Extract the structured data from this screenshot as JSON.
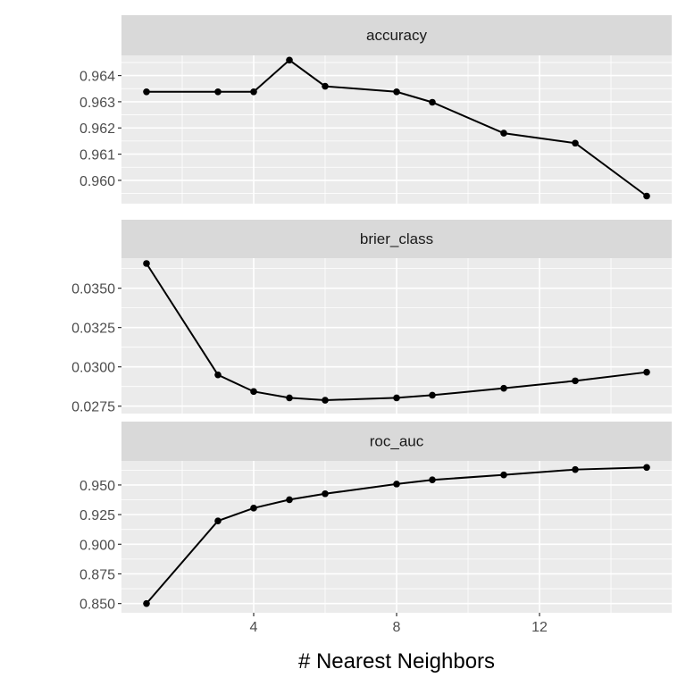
{
  "chart_data": {
    "type": "line",
    "layout": "facet_wrap, 3 rows, free y scales, shared x axis",
    "xlabel": "# Nearest Neighbors",
    "ylabel": "",
    "x": [
      1,
      3,
      4,
      5,
      6,
      8,
      9,
      11,
      13,
      15
    ],
    "xlim": [
      0.3,
      15.7
    ],
    "x_ticks": [
      4,
      8,
      12
    ],
    "x_tick_labels": [
      "4",
      "8",
      "12"
    ],
    "grid": true,
    "colors": {
      "panel_bg": "#ebebeb",
      "strip_bg": "#d9d9d9",
      "grid": "#ffffff",
      "line": "#000000"
    },
    "panels": [
      {
        "strip": "accuracy",
        "ylim": [
          0.95911,
          0.96477
        ],
        "y_ticks": [
          0.96,
          0.961,
          0.962,
          0.963,
          0.964
        ],
        "y_tick_labels": [
          "0.960",
          "0.961",
          "0.962",
          "0.963",
          "0.964"
        ],
        "values": [
          0.96338,
          0.96338,
          0.96338,
          0.96459,
          0.96359,
          0.96338,
          0.96298,
          0.9618,
          0.96142,
          0.9594
        ]
      },
      {
        "strip": "brier_class",
        "ylim": [
          0.02703,
          0.03691
        ],
        "y_ticks": [
          0.0275,
          0.03,
          0.0325,
          0.035
        ],
        "y_tick_labels": [
          "0.0275",
          "0.0300",
          "0.0325",
          "0.0350"
        ],
        "values": [
          0.03657,
          0.02949,
          0.02843,
          0.02803,
          0.02788,
          0.02803,
          0.0282,
          0.02864,
          0.02911,
          0.02966
        ]
      },
      {
        "strip": "roc_auc",
        "ylim": [
          0.8422,
          0.9703
        ],
        "y_ticks": [
          0.85,
          0.875,
          0.9,
          0.925,
          0.95
        ],
        "y_tick_labels": [
          "0.850",
          "0.875",
          "0.900",
          "0.925",
          "0.950"
        ],
        "values": [
          0.85,
          0.9197,
          0.9305,
          0.9376,
          0.9426,
          0.9508,
          0.9543,
          0.9585,
          0.963,
          0.9648
        ]
      }
    ]
  }
}
